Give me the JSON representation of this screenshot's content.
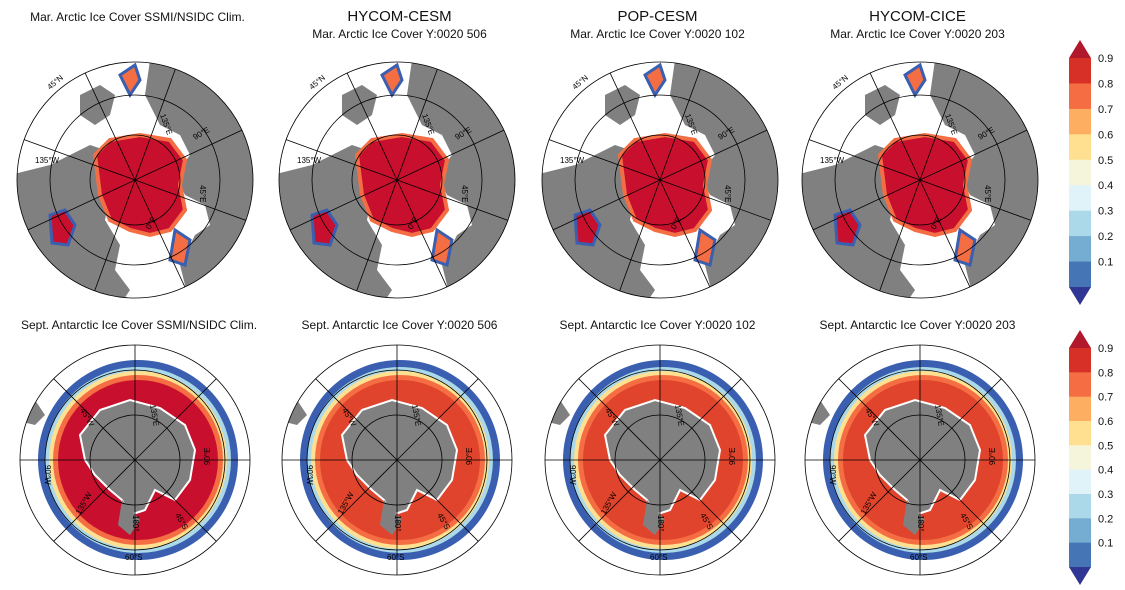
{
  "columns": [
    {
      "model": "",
      "arctic_title": "Mar. Arctic Ice Cover SSMI/NSIDC Clim.",
      "antarctic_title": "Sept. Antarctic Ice Cover SSMI/NSIDC Clim."
    },
    {
      "model": "HYCOM-CESM",
      "arctic_title": "Mar. Arctic Ice Cover Y:0020 506",
      "antarctic_title": "Sept. Antarctic Ice Cover Y:0020 506"
    },
    {
      "model": "POP-CESM",
      "arctic_title": "Mar. Arctic Ice Cover Y:0020 102",
      "antarctic_title": "Sept. Antarctic Ice Cover Y:0020 102"
    },
    {
      "model": "HYCOM-CICE",
      "arctic_title": "Mar. Arctic Ice Cover Y:0020 203",
      "antarctic_title": "Sept. Antarctic Ice Cover Y:0020 203"
    }
  ],
  "map_labels": {
    "arctic": [
      "45°N",
      "135°E",
      "90°E",
      "45°E",
      "0°E",
      "135°W"
    ],
    "antarctic": [
      "135°E",
      "45°W",
      "90°W",
      "90°E",
      "135°W",
      "45°S",
      "180°",
      "60°S"
    ]
  },
  "colorbar": {
    "ticks": [
      "0.9",
      "0.8",
      "0.7",
      "0.6",
      "0.5",
      "0.4",
      "0.3",
      "0.2",
      "0.1"
    ],
    "colors": [
      "#b2182b",
      "#d73027",
      "#f46d43",
      "#fdae61",
      "#fee090",
      "#f5f5dc",
      "#e0f3f8",
      "#abd9e9",
      "#74add1",
      "#4575b4",
      "#313695"
    ]
  },
  "colors": {
    "land": "#808080",
    "ice_high": "#c8102e",
    "ice_edge": "#f46d43",
    "ice_low": "#3a5fb0",
    "open_water": "#ffffff"
  }
}
